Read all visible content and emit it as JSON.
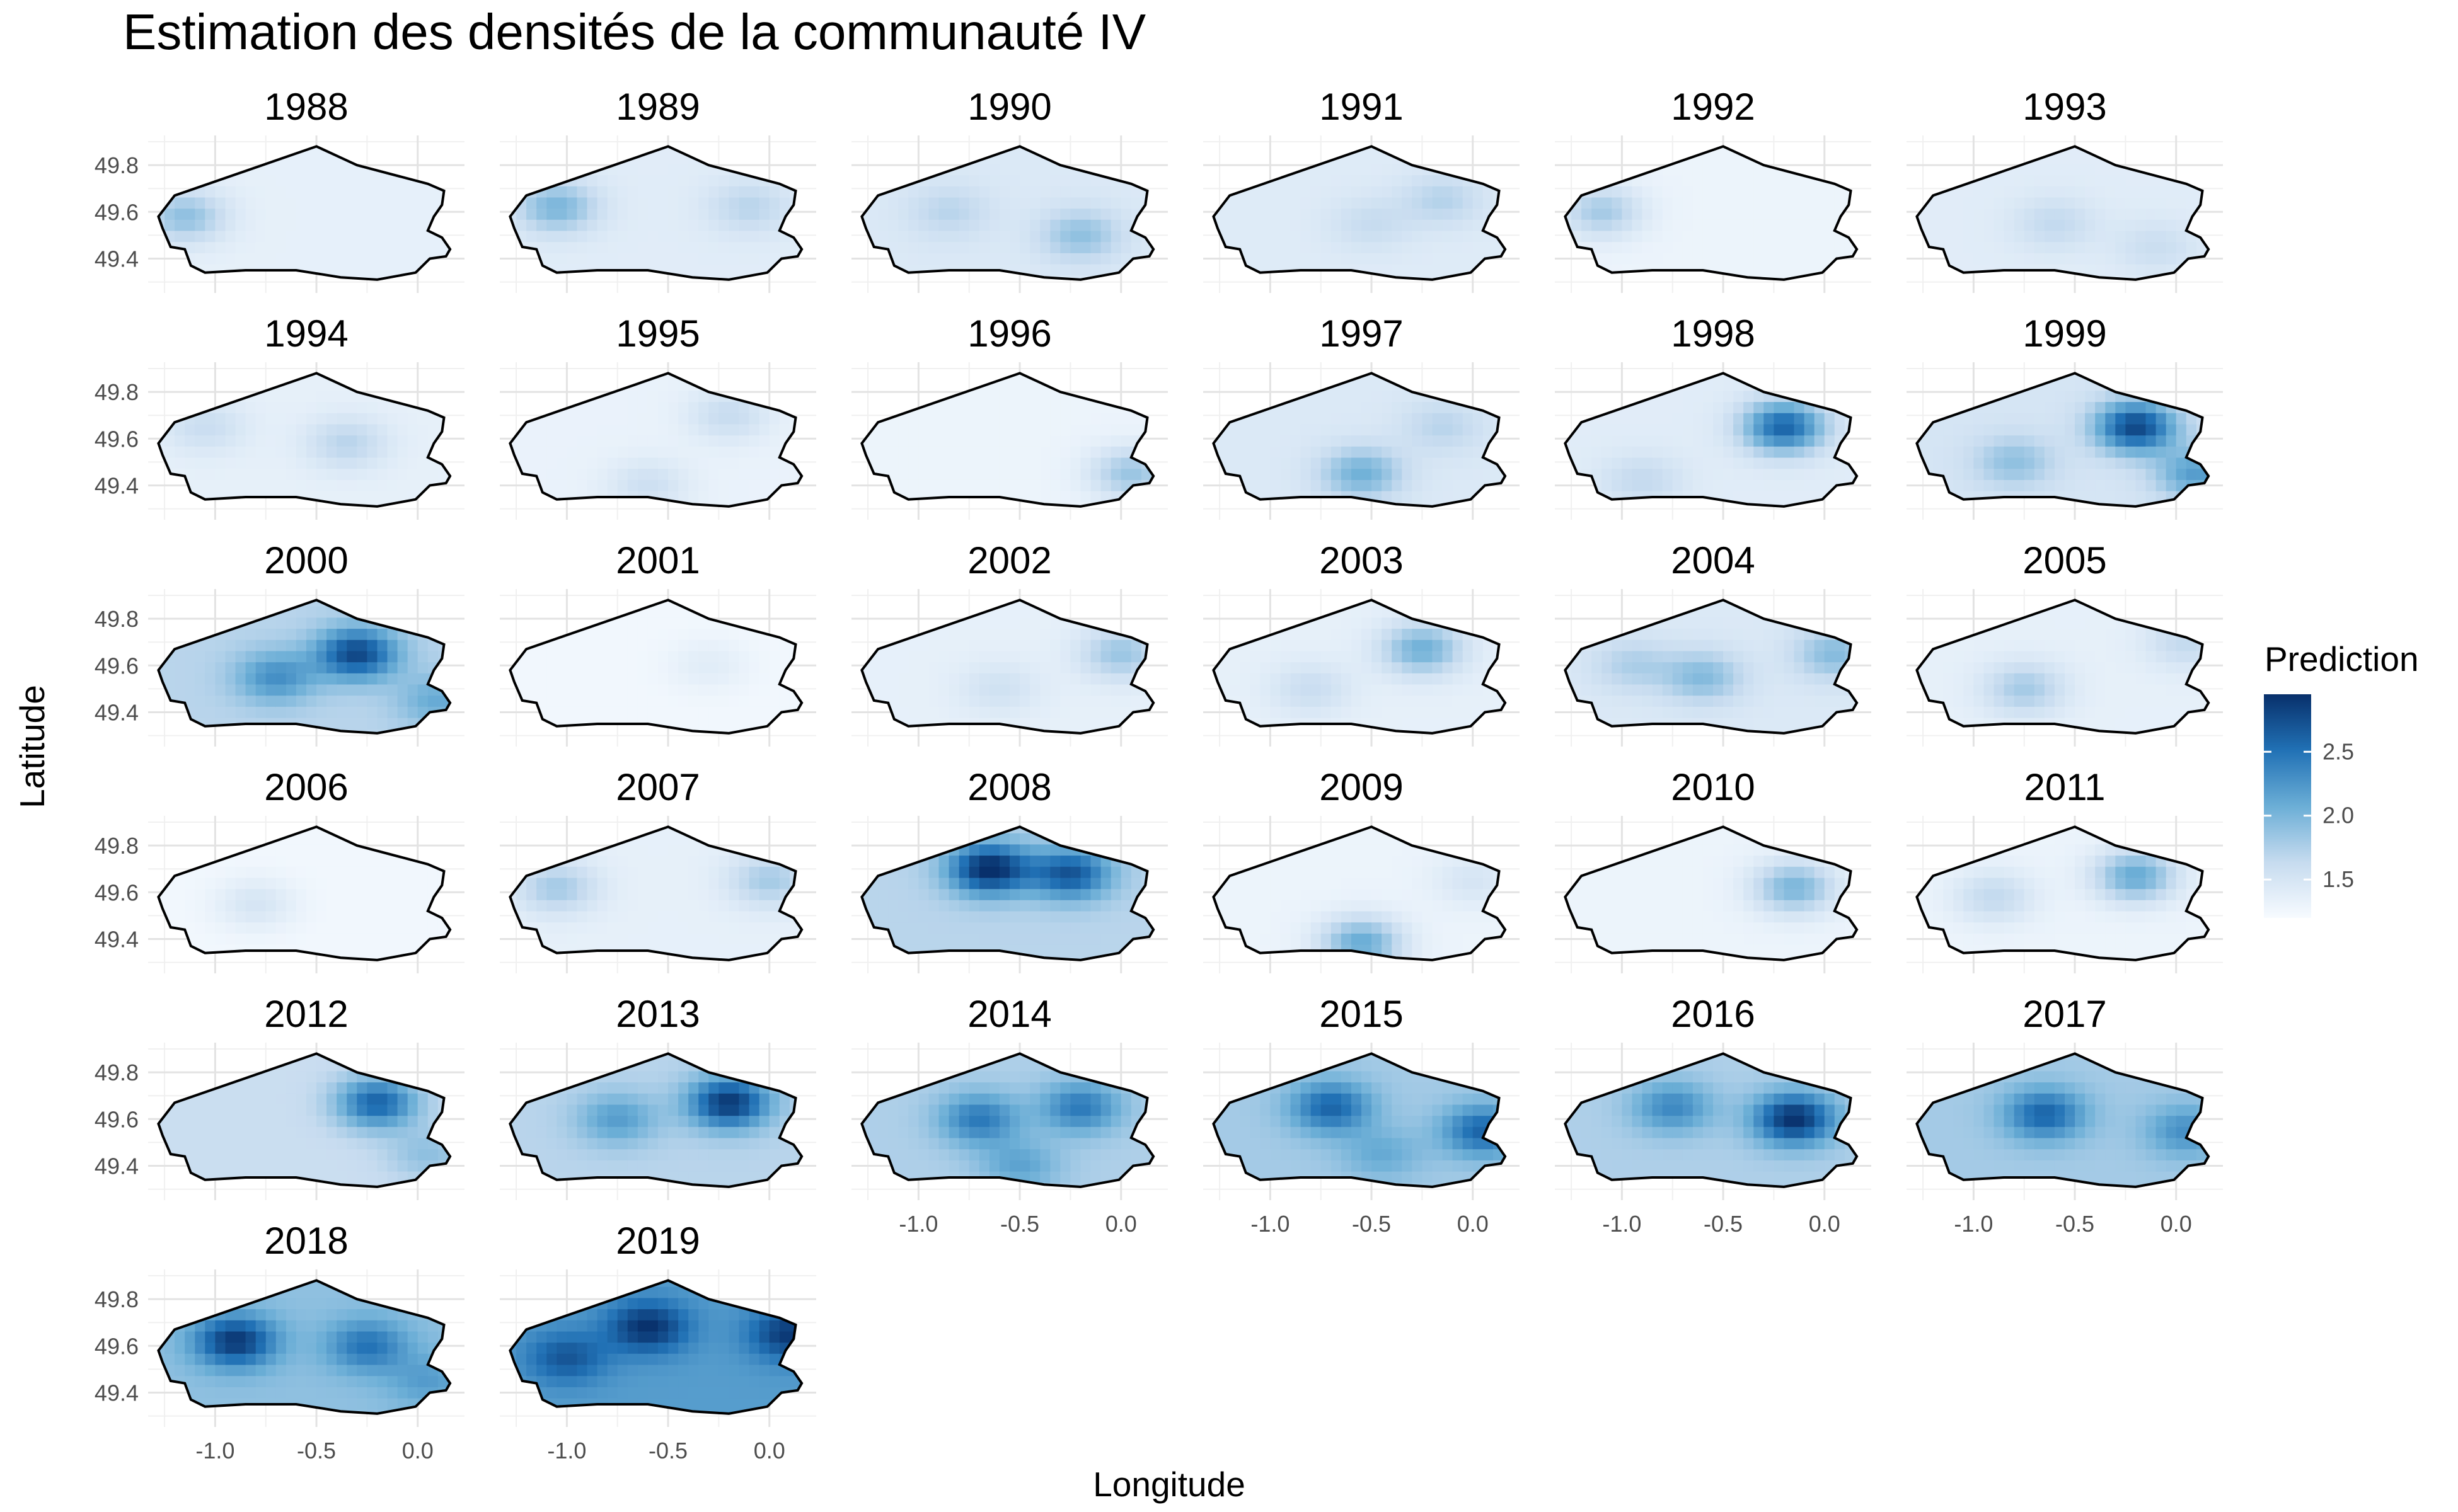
{
  "chart_data": {
    "type": "heatmap",
    "title": "Estimation des densités de la communauté IV",
    "xlabel": "Longitude",
    "ylabel": "Latitude",
    "legend": {
      "title": "Prediction",
      "ticks": [
        "1.5",
        "2.0",
        "2.5"
      ],
      "range": [
        1.2,
        2.95
      ],
      "colors": [
        "#f7fbff",
        "#08306b"
      ],
      "position": "right"
    },
    "xlim": [
      -1.3,
      0.2
    ],
    "ylim": [
      49.28,
      49.9
    ],
    "xticks": [
      "-1.0",
      "-0.5",
      "0.0"
    ],
    "yticks": [
      "49.8",
      "49.6",
      "49.4"
    ],
    "grid": true,
    "panels": [
      {
        "year": "1988",
        "level": 1.35,
        "hot": [
          [
            -1.15,
            49.58,
            0.55
          ]
        ]
      },
      {
        "year": "1989",
        "level": 1.4,
        "hot": [
          [
            -1.05,
            49.62,
            0.6
          ],
          [
            -0.1,
            49.62,
            0.3
          ]
        ]
      },
      {
        "year": "1990",
        "level": 1.45,
        "hot": [
          [
            -0.2,
            49.5,
            0.45
          ],
          [
            -0.85,
            49.6,
            0.25
          ]
        ]
      },
      {
        "year": "1991",
        "level": 1.42,
        "hot": [
          [
            -0.15,
            49.65,
            0.3
          ],
          [
            -0.5,
            49.55,
            0.2
          ]
        ]
      },
      {
        "year": "1992",
        "level": 1.3,
        "hot": [
          [
            -1.1,
            49.6,
            0.5
          ]
        ]
      },
      {
        "year": "1993",
        "level": 1.4,
        "hot": [
          [
            -0.6,
            49.55,
            0.25
          ],
          [
            -0.1,
            49.45,
            0.2
          ]
        ]
      },
      {
        "year": "1994",
        "level": 1.35,
        "hot": [
          [
            -0.35,
            49.58,
            0.35
          ],
          [
            -1.05,
            49.65,
            0.25
          ]
        ]
      },
      {
        "year": "1995",
        "level": 1.32,
        "hot": [
          [
            -0.2,
            49.7,
            0.3
          ],
          [
            -0.6,
            49.4,
            0.25
          ]
        ]
      },
      {
        "year": "1996",
        "level": 1.3,
        "hot": [
          [
            0.05,
            49.45,
            0.55
          ]
        ]
      },
      {
        "year": "1997",
        "level": 1.45,
        "hot": [
          [
            -0.55,
            49.45,
            0.6
          ],
          [
            -0.15,
            49.65,
            0.25
          ]
        ]
      },
      {
        "year": "1998",
        "level": 1.4,
        "hot": [
          [
            -0.2,
            49.65,
            1.2
          ],
          [
            -0.9,
            49.42,
            0.25
          ]
        ]
      },
      {
        "year": "1999",
        "level": 1.5,
        "hot": [
          [
            -0.2,
            49.65,
            1.3
          ],
          [
            0.1,
            49.45,
            0.7
          ],
          [
            -0.8,
            49.5,
            0.4
          ]
        ]
      },
      {
        "year": "2000",
        "level": 1.7,
        "hot": [
          [
            -0.3,
            49.65,
            1.1
          ],
          [
            -0.7,
            49.55,
            0.6
          ],
          [
            0.1,
            49.45,
            0.4
          ]
        ]
      },
      {
        "year": "2001",
        "level": 1.25,
        "hot": [
          [
            -0.3,
            49.6,
            0.15
          ]
        ]
      },
      {
        "year": "2002",
        "level": 1.35,
        "hot": [
          [
            0.0,
            49.65,
            0.5
          ],
          [
            -0.6,
            49.5,
            0.2
          ]
        ]
      },
      {
        "year": "2003",
        "level": 1.35,
        "hot": [
          [
            -0.25,
            49.67,
            0.7
          ],
          [
            -0.8,
            49.5,
            0.25
          ]
        ]
      },
      {
        "year": "2004",
        "level": 1.45,
        "hot": [
          [
            -0.6,
            49.55,
            0.5
          ],
          [
            0.05,
            49.65,
            0.5
          ],
          [
            -0.95,
            49.6,
            0.3
          ]
        ]
      },
      {
        "year": "2005",
        "level": 1.35,
        "hot": [
          [
            -0.75,
            49.5,
            0.45
          ],
          [
            0.05,
            49.7,
            0.3
          ]
        ]
      },
      {
        "year": "2006",
        "level": 1.25,
        "hot": [
          [
            -0.8,
            49.55,
            0.25
          ]
        ]
      },
      {
        "year": "2007",
        "level": 1.35,
        "hot": [
          [
            -1.05,
            49.62,
            0.45
          ],
          [
            0.0,
            49.65,
            0.45
          ]
        ]
      },
      {
        "year": "2008",
        "level": 1.7,
        "hot": [
          [
            -0.65,
            49.7,
            1.3
          ],
          [
            -0.25,
            49.68,
            1.0
          ]
        ]
      },
      {
        "year": "2009",
        "level": 1.3,
        "hot": [
          [
            -0.55,
            49.38,
            0.8
          ],
          [
            0.0,
            49.65,
            0.2
          ]
        ]
      },
      {
        "year": "2010",
        "level": 1.3,
        "hot": [
          [
            -0.15,
            49.62,
            0.7
          ]
        ]
      },
      {
        "year": "2011",
        "level": 1.3,
        "hot": [
          [
            -0.2,
            49.67,
            0.8
          ],
          [
            -0.9,
            49.58,
            0.35
          ]
        ]
      },
      {
        "year": "2012",
        "level": 1.6,
        "hot": [
          [
            -0.2,
            49.67,
            1.0
          ],
          [
            0.05,
            49.45,
            0.3
          ]
        ]
      },
      {
        "year": "2013",
        "level": 1.7,
        "hot": [
          [
            -0.2,
            49.67,
            1.2
          ],
          [
            -0.75,
            49.6,
            0.5
          ]
        ]
      },
      {
        "year": "2014",
        "level": 1.75,
        "hot": [
          [
            -0.7,
            49.6,
            0.7
          ],
          [
            -0.2,
            49.65,
            0.7
          ],
          [
            -0.5,
            49.4,
            0.4
          ]
        ]
      },
      {
        "year": "2015",
        "level": 1.8,
        "hot": [
          [
            -0.7,
            49.65,
            0.8
          ],
          [
            0.05,
            49.55,
            0.8
          ],
          [
            -0.45,
            49.45,
            0.3
          ]
        ]
      },
      {
        "year": "2016",
        "level": 1.75,
        "hot": [
          [
            -0.15,
            49.6,
            1.2
          ],
          [
            -0.75,
            49.65,
            0.6
          ]
        ]
      },
      {
        "year": "2017",
        "level": 1.8,
        "hot": [
          [
            -0.65,
            49.62,
            0.8
          ],
          [
            0.05,
            49.55,
            0.5
          ]
        ]
      },
      {
        "year": "2018",
        "level": 1.9,
        "hot": [
          [
            -0.9,
            49.62,
            1.0
          ],
          [
            -0.25,
            49.6,
            0.6
          ],
          [
            0.05,
            49.45,
            0.3
          ]
        ]
      },
      {
        "year": "2019",
        "level": 2.2,
        "hot": [
          [
            -0.6,
            49.68,
            0.75
          ],
          [
            0.1,
            49.65,
            0.7
          ],
          [
            -1.0,
            49.55,
            0.5
          ]
        ]
      }
    ]
  }
}
